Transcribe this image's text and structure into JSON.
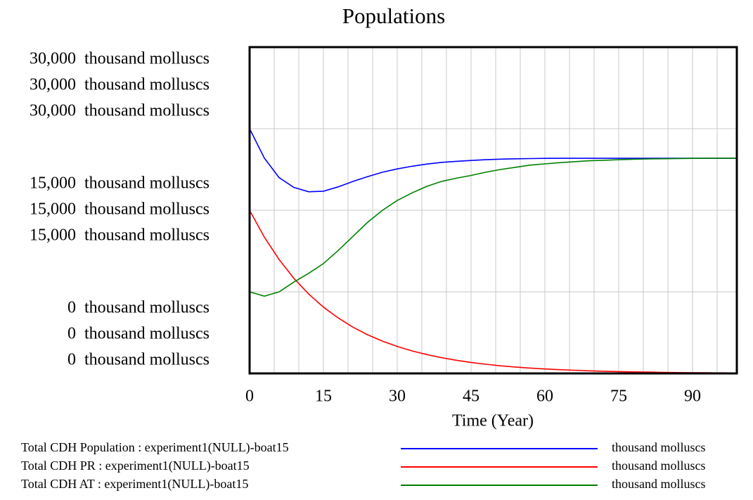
{
  "chart_data": {
    "type": "line",
    "title": "Populations",
    "x_label": "Time (Year)",
    "x": [
      0,
      3,
      6,
      9,
      12,
      15,
      18,
      21,
      24,
      27,
      30,
      33,
      36,
      39,
      42,
      45,
      48,
      51,
      54,
      57,
      60,
      63,
      66,
      69,
      72,
      75,
      78,
      81,
      84,
      87,
      90,
      93,
      96,
      99
    ],
    "xlim": [
      0,
      99
    ],
    "xticks": [
      0,
      15,
      30,
      45,
      60,
      75,
      90
    ],
    "x_gridlines": [
      5,
      10,
      15,
      20,
      25,
      30,
      35,
      40,
      45,
      50,
      55,
      60,
      65,
      70,
      75,
      80,
      85,
      90,
      95
    ],
    "ylim": [
      0,
      30000
    ],
    "yticks": [
      {
        "value": 0,
        "label": "0"
      },
      {
        "value": 15000,
        "label": "15,000"
      },
      {
        "value": 30000,
        "label": "30,000"
      }
    ],
    "y_gridlines": [
      7500,
      15000,
      22500
    ],
    "series": [
      {
        "name": "Total CDH Population : experiment1(NULL)-boat15",
        "units": "thousand molluscs",
        "color": "#0000ff",
        "values": [
          22500,
          19800,
          18000,
          17100,
          16700,
          16750,
          17150,
          17650,
          18100,
          18500,
          18800,
          19050,
          19250,
          19400,
          19500,
          19580,
          19650,
          19700,
          19730,
          19750,
          19770,
          19780,
          19780,
          19780,
          19780,
          19780,
          19780,
          19780,
          19780,
          19780,
          19780,
          19780,
          19780,
          19780
        ]
      },
      {
        "name": "Total CDH PR : experiment1(NULL)-boat15",
        "units": "thousand molluscs",
        "color": "#ff0000",
        "values": [
          15000,
          12530,
          10470,
          8740,
          7300,
          6100,
          5100,
          4250,
          3550,
          2970,
          2480,
          2070,
          1730,
          1450,
          1210,
          1010,
          840,
          700,
          590,
          490,
          410,
          340,
          290,
          240,
          200,
          170,
          140,
          120,
          100,
          80,
          70,
          60,
          50,
          40
        ]
      },
      {
        "name": "Total CDH AT : experiment1(NULL)-boat15",
        "units": "thousand molluscs",
        "color": "#008000",
        "values": [
          7500,
          7100,
          7500,
          8400,
          9200,
          10100,
          11300,
          12600,
          13900,
          15000,
          15900,
          16600,
          17200,
          17650,
          17950,
          18200,
          18500,
          18750,
          18950,
          19150,
          19270,
          19380,
          19470,
          19550,
          19600,
          19650,
          19690,
          19720,
          19740,
          19760,
          19770,
          19775,
          19780,
          19780
        ]
      }
    ]
  }
}
